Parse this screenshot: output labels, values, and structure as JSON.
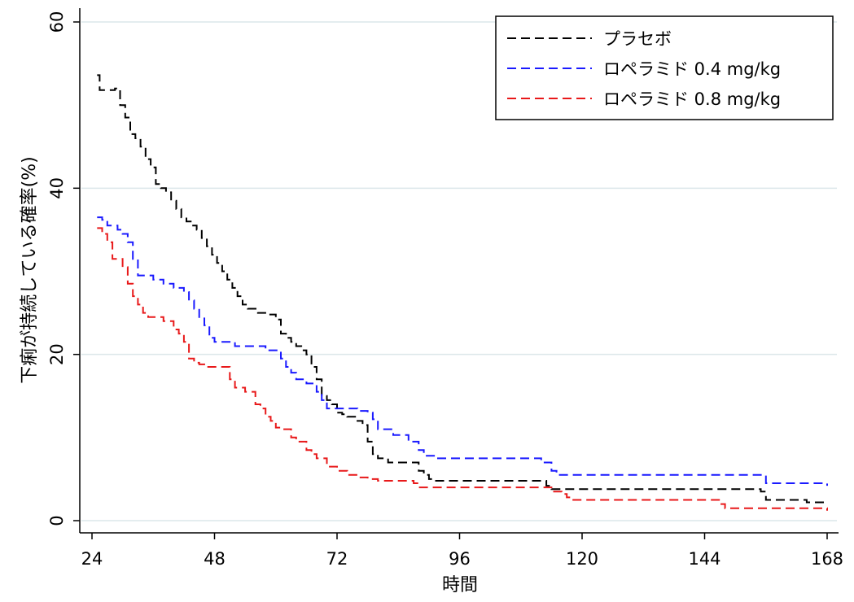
{
  "chart_data": {
    "type": "line",
    "step": true,
    "xlabel": "時間",
    "ylabel": "下痢が持続している確率(%)",
    "xlim": [
      24,
      168
    ],
    "ylim": [
      0,
      60
    ],
    "xticks": [
      "24",
      "48",
      "72",
      "96",
      "120",
      "144",
      "168"
    ],
    "yticks": [
      "0",
      "20",
      "40",
      "60"
    ],
    "grid": "horizontal",
    "legend_position": "top-right",
    "series": [
      {
        "name": "プラセボ",
        "color": "#000000",
        "dash": "dashed",
        "x": [
          25,
          25.5,
          28.5,
          29.5,
          30.5,
          31.5,
          32.5,
          33.5,
          34.5,
          35.5,
          36.5,
          37.5,
          38.5,
          39.5,
          40.5,
          41.5,
          42.5,
          43.5,
          44.5,
          45.5,
          46.5,
          47.5,
          48.5,
          49.5,
          50.5,
          51.5,
          52.5,
          53.5,
          54.5,
          55.5,
          56.5,
          58.5,
          60,
          61,
          62,
          63,
          64,
          65,
          66,
          67,
          68,
          69,
          70,
          71,
          72,
          73,
          74,
          76,
          77,
          78,
          79,
          80,
          82,
          85,
          88,
          89,
          90,
          91,
          113,
          114,
          155,
          156,
          164,
          168
        ],
        "y": [
          53.6,
          51.8,
          52,
          50,
          48.5,
          46.5,
          46,
          45,
          43.5,
          42.5,
          40.5,
          40,
          39.5,
          38.5,
          37.5,
          36.5,
          36,
          35.5,
          35,
          34,
          33,
          32,
          31,
          30,
          29,
          28,
          27,
          26,
          25.5,
          25.5,
          25,
          24.8,
          24.2,
          22.5,
          22,
          21.5,
          21,
          20.5,
          20,
          18.5,
          17,
          15,
          14.5,
          14,
          13,
          12.8,
          12.5,
          12,
          11.5,
          9.5,
          8,
          7.5,
          7,
          7,
          6,
          5.5,
          5,
          4.8,
          4.2,
          3.8,
          3.5,
          2.5,
          2.2,
          2.2
        ]
      },
      {
        "name": "ロペラミド 0.4 mg/kg",
        "color": "#1a1aff",
        "dash": "dashed",
        "x": [
          25,
          26,
          27,
          29,
          30,
          31,
          32,
          33,
          36,
          38,
          40,
          42,
          43,
          44,
          45,
          46,
          47,
          48,
          52,
          58,
          60,
          61,
          62,
          63,
          64,
          66,
          68,
          69,
          70,
          76,
          78,
          79,
          80,
          83,
          86,
          88,
          89,
          91,
          92,
          94,
          112,
          114,
          115,
          155,
          156,
          168
        ],
        "y": [
          36.5,
          36.2,
          35.5,
          35,
          34.5,
          33.5,
          31.5,
          29.5,
          29,
          28.5,
          28,
          27.5,
          26.5,
          25.5,
          24.5,
          23.5,
          22,
          21.5,
          21,
          20.5,
          20.5,
          19.5,
          18.5,
          17.8,
          17,
          16.5,
          15.5,
          14.5,
          13.5,
          13.2,
          13,
          12.2,
          11,
          10.3,
          9.5,
          8.5,
          7.8,
          7.5,
          7.5,
          7.5,
          7,
          6,
          5.5,
          5.5,
          4.5,
          4.2
        ]
      },
      {
        "name": "ロペラミド 0.8 mg/kg",
        "color": "#e8191a",
        "dash": "dashed",
        "x": [
          25,
          26,
          27,
          28,
          30,
          31,
          32,
          33,
          34,
          35,
          38,
          40,
          41,
          42,
          43,
          44,
          45,
          46,
          48,
          51,
          52,
          54,
          56,
          57,
          58,
          59,
          60,
          61,
          63,
          64,
          66,
          67,
          68,
          70,
          72,
          74,
          76,
          78,
          79,
          80,
          87,
          88,
          90,
          112,
          114,
          116,
          117,
          118,
          146,
          147,
          148,
          168
        ],
        "y": [
          35.2,
          34.5,
          33.5,
          31.5,
          30.5,
          28.5,
          27,
          26,
          25,
          24.5,
          24,
          23,
          22.5,
          21.5,
          19.5,
          19,
          18.8,
          18.5,
          18.5,
          17,
          16,
          15.5,
          14,
          13.5,
          12.5,
          12,
          11.2,
          11,
          10,
          9.5,
          8.5,
          8,
          7.5,
          6.5,
          6,
          5.5,
          5.2,
          5,
          5,
          4.8,
          4.5,
          4,
          4,
          4,
          3.5,
          3.2,
          2.8,
          2.5,
          2.5,
          2,
          1.5,
          1.2
        ]
      }
    ]
  }
}
